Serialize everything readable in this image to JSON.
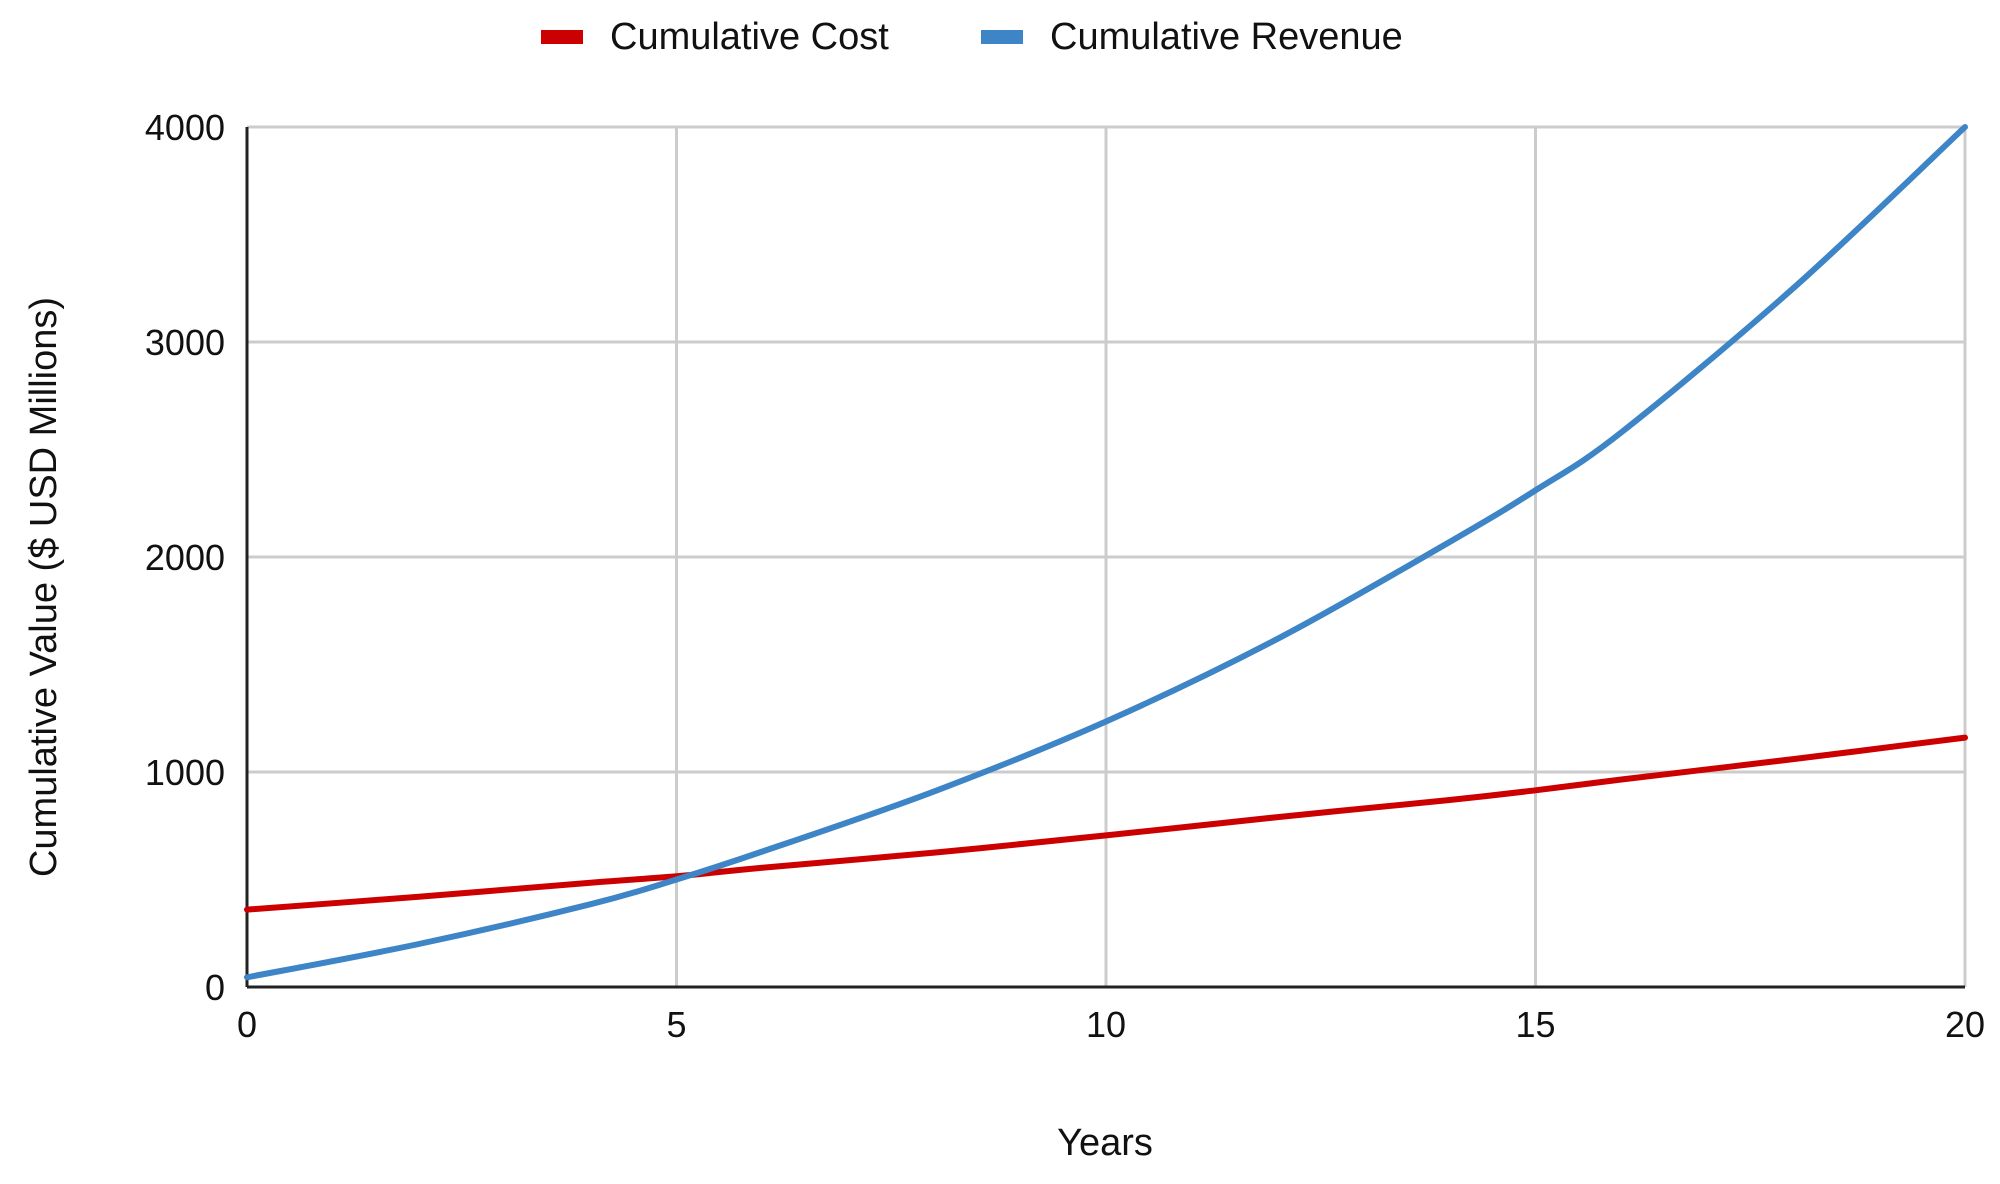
{
  "colors": {
    "background": "#ffffff",
    "grid": "#cccccc",
    "axis": "#222222",
    "cost": "#cc0000",
    "revenue": "#3d85c6"
  },
  "chart_data": {
    "type": "line",
    "title": "",
    "xlabel": "Years",
    "ylabel": "Cumulative Value ($ USD Millions)",
    "xlim": [
      0,
      20
    ],
    "ylim": [
      0,
      4000
    ],
    "xticks": [
      0,
      5,
      10,
      15,
      20
    ],
    "xtick_labels": [
      "0",
      "5",
      "10",
      "15",
      "20"
    ],
    "yticks": [
      0,
      1000,
      2000,
      3000,
      4000
    ],
    "ytick_labels": [
      "0",
      "1000",
      "2000",
      "3000",
      "4000"
    ],
    "grid": true,
    "legend_position": "top-center",
    "x": [
      0,
      2,
      4,
      5,
      6,
      8,
      10,
      12,
      14,
      15,
      16,
      18,
      20
    ],
    "series": [
      {
        "name": "Cumulative Cost",
        "color": "#cc0000",
        "values": [
          360,
          420,
          485,
          515,
          555,
          625,
          705,
          790,
          870,
          915,
          965,
          1060,
          1160
        ]
      },
      {
        "name": "Cumulative Revenue",
        "color": "#3d85c6",
        "values": [
          45,
          200,
          385,
          500,
          630,
          910,
          1235,
          1620,
          2070,
          2310,
          2580,
          3250,
          4000
        ]
      }
    ]
  }
}
